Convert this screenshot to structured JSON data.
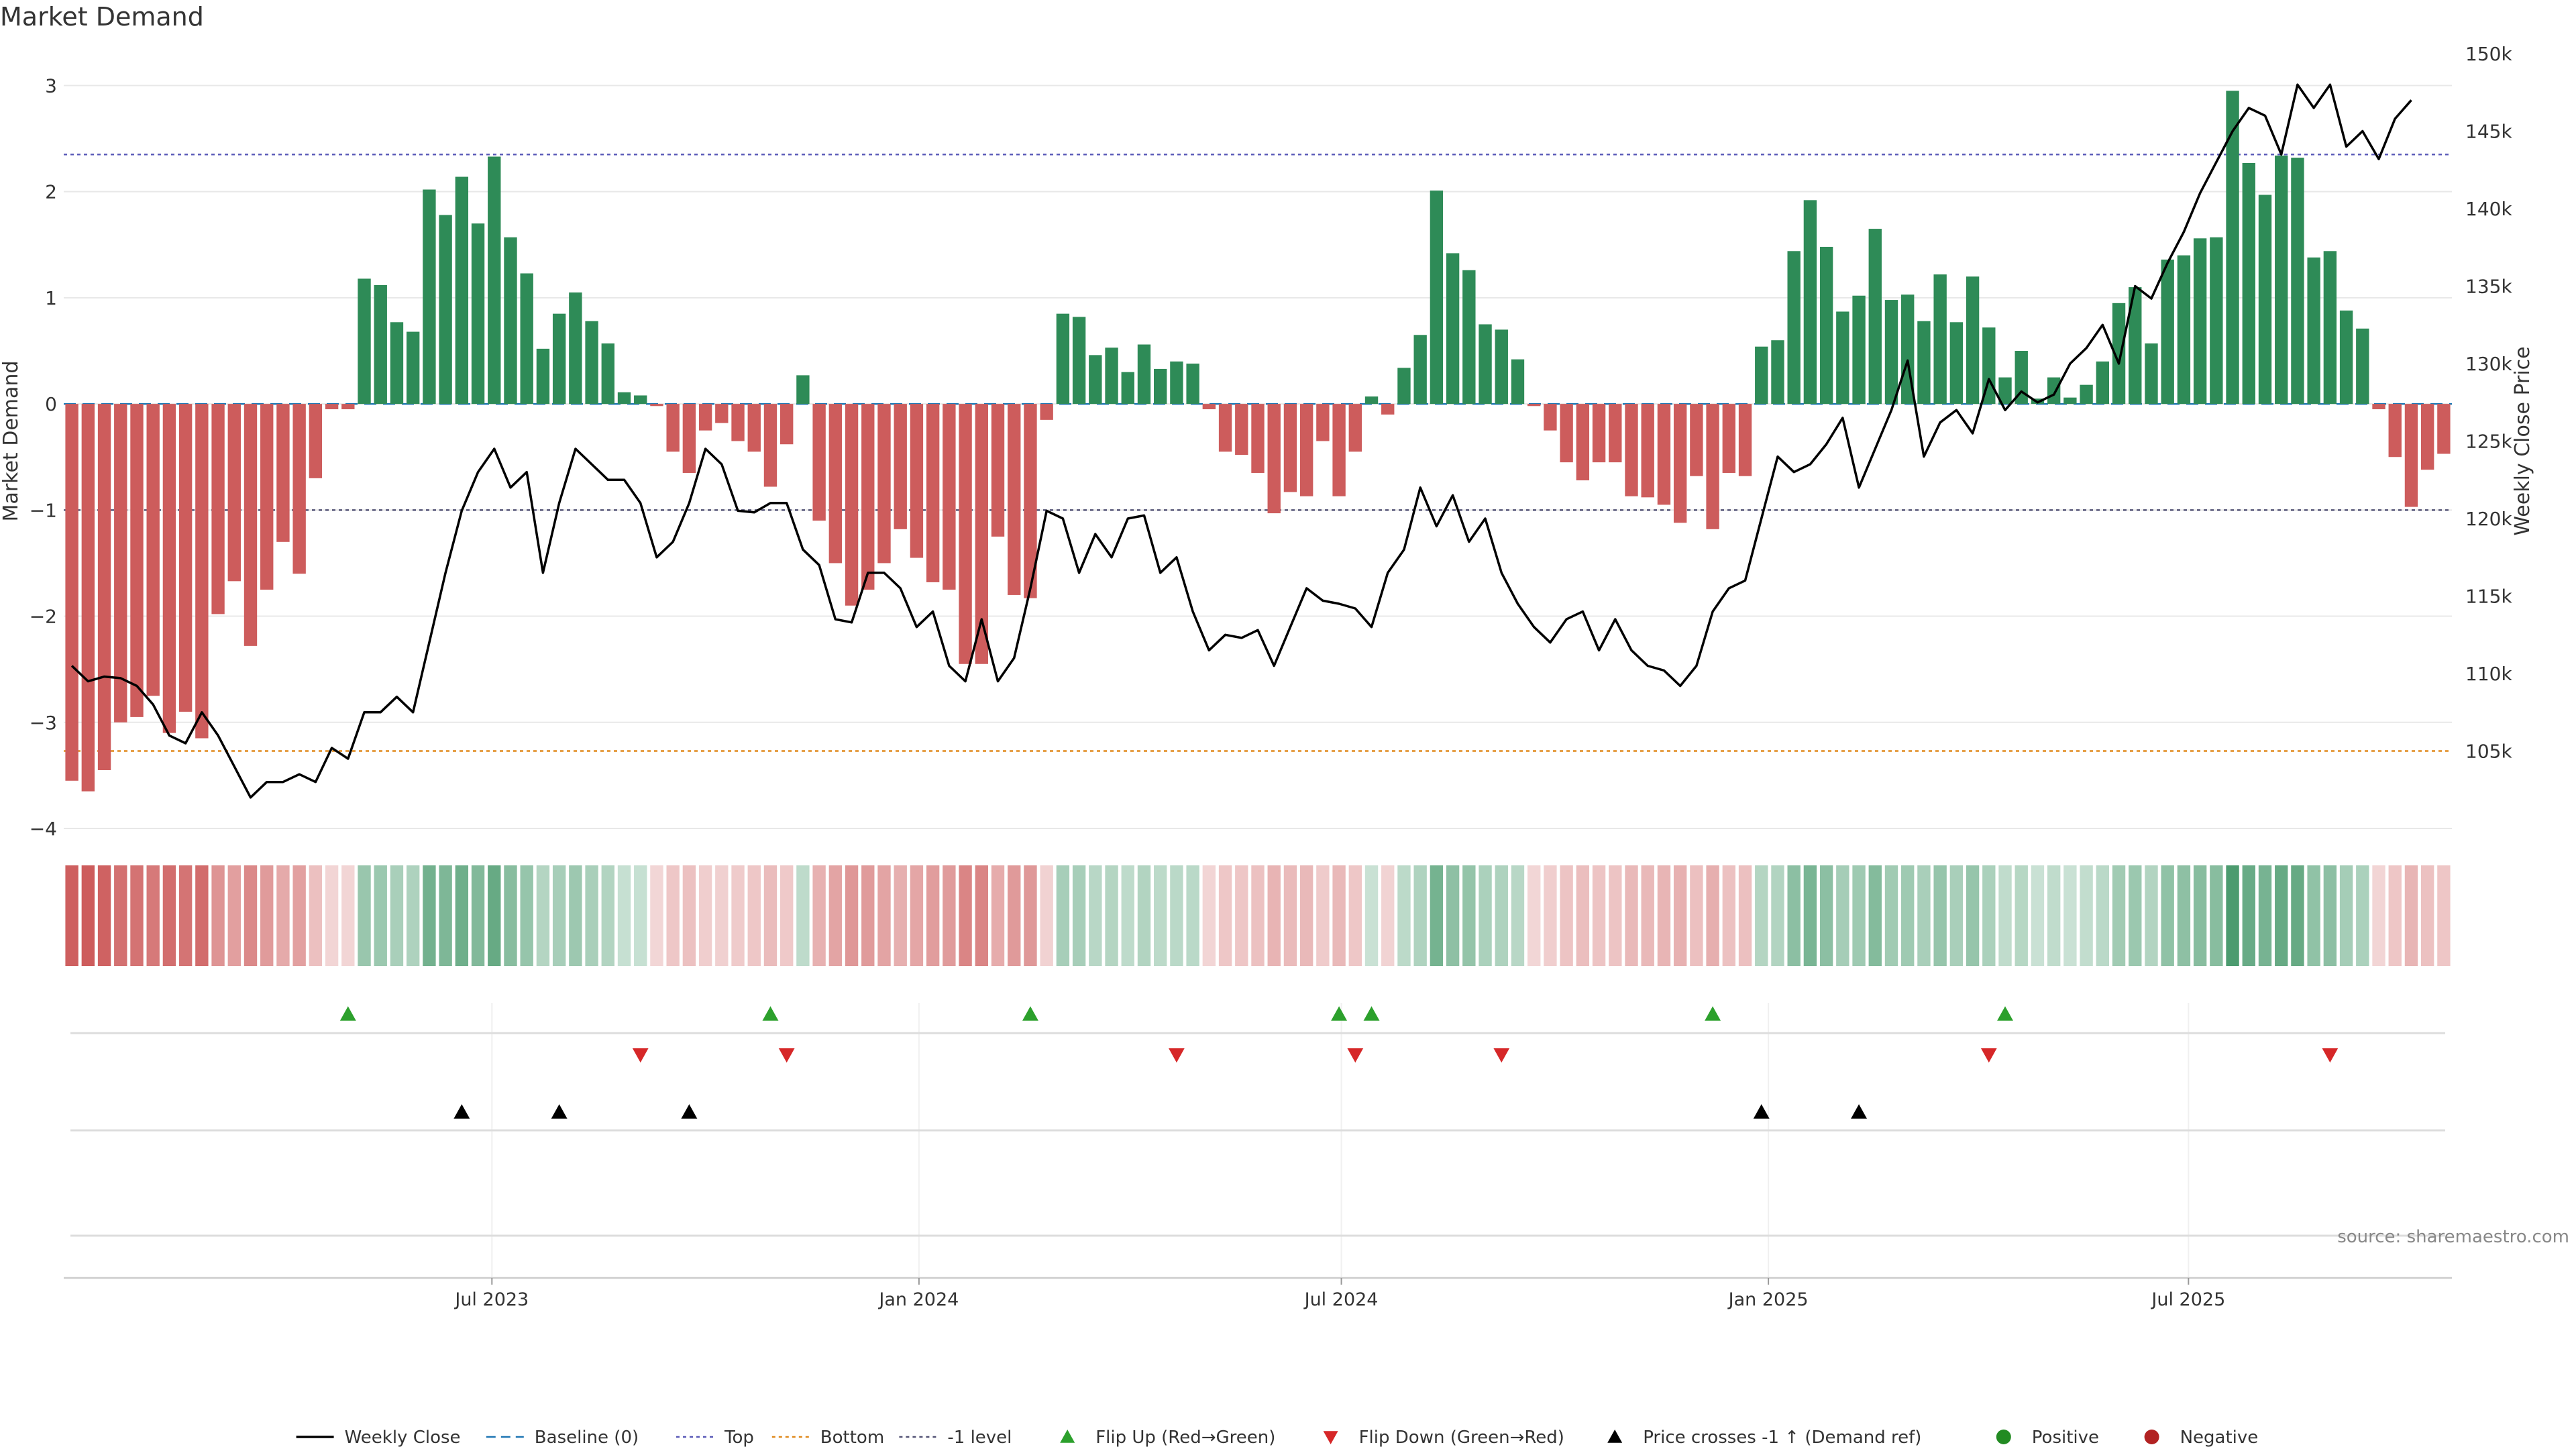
{
  "chart_data": {
    "type": "bar",
    "title": "Market Demand",
    "ylabel": "Market Demand",
    "y2label": "Weekly Close Price",
    "ylim": [
      -4,
      3.3
    ],
    "y2lim": [
      100000,
      150000
    ],
    "yticks": [
      3,
      2,
      1,
      0,
      -1,
      -2,
      -3,
      -4
    ],
    "y2ticks": [
      105000,
      110000,
      115000,
      120000,
      125000,
      130000,
      135000,
      140000,
      145000,
      150000
    ],
    "y2tick_labels": [
      "105k",
      "110k",
      "115k",
      "120k",
      "125k",
      "130k",
      "135k",
      "140k",
      "145k",
      "150k"
    ],
    "x_start_date": "2023-01-01",
    "x_end_date": "2025-10-26",
    "x_tick_dates": [
      "2023-07-01",
      "2024-01-01",
      "2024-07-01",
      "2025-01-01",
      "2025-07-01"
    ],
    "x_tick_labels": [
      "Jul 2023",
      "Jan 2024",
      "Jul 2024",
      "Jan 2025",
      "Jul 2025"
    ],
    "reference_lines": [
      {
        "name": "Top",
        "value": 2.35,
        "color": "#5b5bb8"
      },
      {
        "name": "-1 level",
        "value": -1.0,
        "color": "#555577"
      },
      {
        "name": "Bottom",
        "value": -3.27,
        "color": "#e08a1e"
      }
    ],
    "week_index_note": "Each value corresponds to one weekly bar, week 0 = 2023-01-01, one week apart",
    "demand": [
      -3.55,
      -3.65,
      -3.45,
      -3.0,
      -2.95,
      -2.75,
      -3.1,
      -2.9,
      -3.15,
      -1.98,
      -1.67,
      -2.28,
      -1.75,
      -1.3,
      -1.6,
      -0.7,
      -0.05,
      -0.05,
      1.18,
      1.12,
      0.77,
      0.68,
      2.02,
      1.78,
      2.14,
      1.7,
      2.33,
      1.57,
      1.23,
      0.52,
      0.85,
      1.05,
      0.78,
      0.57,
      0.11,
      0.08,
      -0.02,
      -0.45,
      -0.65,
      -0.25,
      -0.18,
      -0.35,
      -0.45,
      -0.78,
      -0.38,
      0.27,
      -1.1,
      -1.5,
      -1.9,
      -1.75,
      -1.5,
      -1.18,
      -1.45,
      -1.68,
      -1.75,
      -2.45,
      -2.45,
      -1.25,
      -1.8,
      -1.83,
      -0.15,
      0.85,
      0.82,
      0.46,
      0.53,
      0.3,
      0.56,
      0.33,
      0.4,
      0.38,
      -0.05,
      -0.45,
      -0.48,
      -0.65,
      -1.03,
      -0.83,
      -0.87,
      -0.35,
      -0.87,
      -0.45,
      0.07,
      -0.1,
      0.34,
      0.65,
      2.01,
      1.42,
      1.26,
      0.75,
      0.7,
      0.42,
      -0.02,
      -0.25,
      -0.55,
      -0.72,
      -0.55,
      -0.55,
      -0.87,
      -0.88,
      -0.95,
      -1.12,
      -0.68,
      -1.18,
      -0.65,
      -0.68,
      0.54,
      0.6,
      1.44,
      1.92,
      1.48,
      0.87,
      1.02,
      1.65,
      0.98,
      1.03,
      0.78,
      1.22,
      0.77,
      1.2,
      0.72,
      0.25,
      0.5,
      0.05,
      0.25,
      0.06,
      0.18,
      0.4,
      0.95,
      1.1,
      0.57,
      1.36,
      1.4,
      1.56,
      1.57,
      2.95,
      2.27,
      1.97,
      2.34,
      2.32,
      1.38,
      1.44,
      0.88,
      0.71,
      -0.05,
      -0.5,
      -0.97,
      -0.62,
      -0.47
    ],
    "close": [
      110500,
      109500,
      109800,
      109700,
      109200,
      108000,
      106000,
      105500,
      107500,
      106000,
      104000,
      102000,
      103000,
      103000,
      103500,
      103000,
      105200,
      104500,
      107500,
      107500,
      108500,
      107500,
      112000,
      116500,
      120500,
      123000,
      124500,
      122000,
      123000,
      116500,
      121000,
      124500,
      123500,
      122500,
      122500,
      121000,
      117500,
      118500,
      121000,
      124500,
      123500,
      120500,
      120400,
      121000,
      121000,
      118000,
      117000,
      113500,
      113300,
      116500,
      116500,
      115500,
      113000,
      114000,
      110500,
      109500,
      113500,
      109500,
      111000,
      115500,
      120500,
      120000,
      116500,
      119000,
      117500,
      120000,
      120200,
      116500,
      117500,
      114000,
      111500,
      112500,
      112300,
      112800,
      110500,
      113000,
      115500,
      114700,
      114500,
      114200,
      113000,
      116500,
      118000,
      122000,
      119500,
      121500,
      118500,
      120000,
      116500,
      114500,
      113000,
      112000,
      113500,
      114000,
      111500,
      113500,
      111500,
      110500,
      110200,
      109200,
      110500,
      114000,
      115500,
      116000,
      120000,
      124000,
      123000,
      123500,
      124800,
      126500,
      122000,
      124500,
      127000,
      130200,
      124000,
      126200,
      127000,
      125500,
      129000,
      127000,
      128200,
      127500,
      128000,
      130000,
      131000,
      132500,
      130000,
      135000,
      134200,
      136500,
      138500,
      141000,
      143000,
      145000,
      146500,
      146000,
      143500,
      148000,
      146500,
      148000,
      144000,
      145000,
      143200,
      145800,
      147000
    ],
    "bottom_strip": {
      "description": "Colored weekly regime strip (green = positive demand, red = negative demand, intensity = magnitude)"
    },
    "flip_up_weeks": [
      17,
      43,
      59,
      78,
      80,
      101,
      119
    ],
    "flip_down_weeks": [
      35,
      44,
      68,
      79,
      88,
      118,
      139
    ],
    "price_cross_weeks": [
      24,
      30,
      38,
      104,
      110
    ],
    "colors": {
      "positive": "#2e8b57",
      "negative": "#cd5c5c",
      "close_line": "#000000",
      "baseline": "#1f77b4",
      "flip_up": "#2ca02c",
      "flip_down": "#d62728",
      "cross": "#000000",
      "positive_dot": "#228b22",
      "negative_dot": "#b22222",
      "grid": "#e8e8e8",
      "axis_text": "#333333"
    },
    "legend": [
      {
        "label": "Weekly Close",
        "kind": "line",
        "color": "#000000"
      },
      {
        "label": "Baseline (0)",
        "kind": "dash",
        "color": "#1f77b4"
      },
      {
        "label": "Top",
        "kind": "dot",
        "color": "#5b5bb8"
      },
      {
        "label": "Bottom",
        "kind": "dot",
        "color": "#e08a1e"
      },
      {
        "label": "-1 level",
        "kind": "dot",
        "color": "#555577"
      },
      {
        "label": "Flip Up (Red→Green)",
        "kind": "tri-up",
        "color": "#2ca02c"
      },
      {
        "label": "Flip Down (Green→Red)",
        "kind": "tri-down",
        "color": "#d62728"
      },
      {
        "label": "Price crosses -1 ↑ (Demand ref)",
        "kind": "tri-up",
        "color": "#000000"
      },
      {
        "label": "Positive",
        "kind": "circle",
        "color": "#228b22"
      },
      {
        "label": "Negative",
        "kind": "circle",
        "color": "#b22222"
      }
    ],
    "legend_position": "bottom-center",
    "source_note": "source: sharemaestro.com"
  }
}
